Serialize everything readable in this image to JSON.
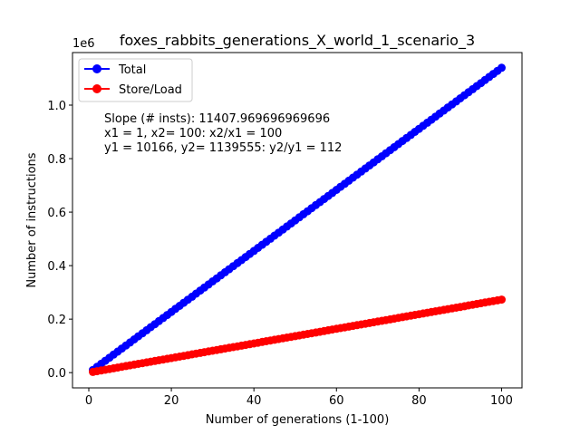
{
  "chart_data": {
    "type": "line",
    "title": "foxes_rabbits_generations_X_world_1_scenario_3",
    "xlabel": "Number of generations (1-100)",
    "ylabel": "Number of instructions",
    "y_offset_label": "1e6",
    "xlim": [
      -3.95,
      104.95
    ],
    "ylim": [
      -56970,
      1196526
    ],
    "x_ticks": [
      0,
      20,
      40,
      60,
      80,
      100
    ],
    "x_tick_labels": [
      "0",
      "20",
      "40",
      "60",
      "80",
      "100"
    ],
    "y_ticks": [
      0,
      200000,
      400000,
      600000,
      800000,
      1000000
    ],
    "y_tick_labels": [
      "0.0",
      "0.2",
      "0.4",
      "0.6",
      "0.8",
      "1.0"
    ],
    "grid": false,
    "legend_position": "upper-left",
    "x": {
      "start": 1,
      "end": 100,
      "step": 1
    },
    "series": [
      {
        "name": "Total",
        "color": "#0000ff",
        "marker": "circle",
        "y_first": 10166,
        "y_last": 1139555,
        "slope": 11407.969696969696
      },
      {
        "name": "Store/Load",
        "color": "#ff0000",
        "marker": "circle",
        "y_first": 2700,
        "y_last": 273000,
        "slope": 2730.3030303030305
      }
    ],
    "annotation": [
      "Slope (# insts): 11407.969696969696",
      "x1 = 1, x2= 100: x2/x1 = 100",
      "y1 = 10166, y2= 1139555: y2/y1 = 112"
    ]
  }
}
